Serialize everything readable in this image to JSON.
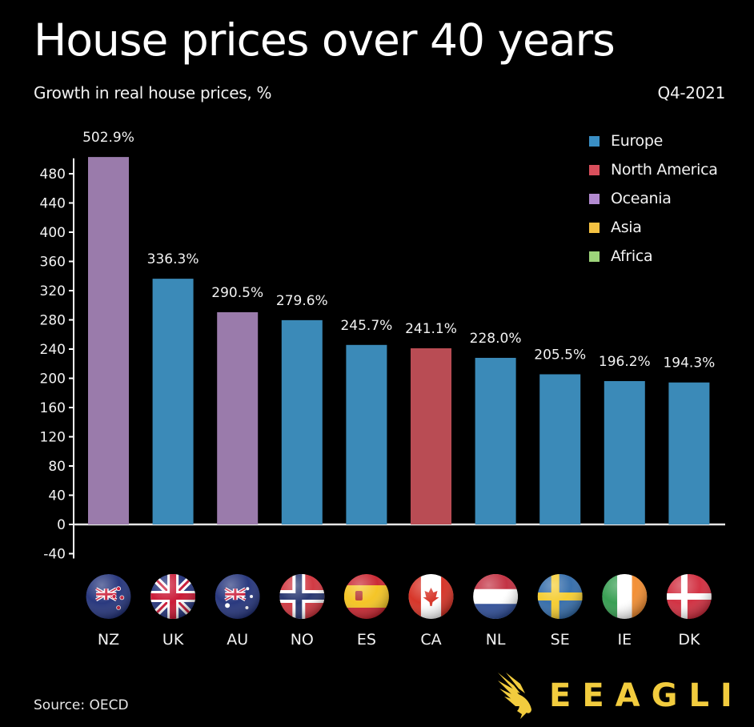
{
  "header": {
    "title": "House prices over 40 years",
    "subtitle": "Growth in real house prices, %",
    "date": "Q4-2021"
  },
  "legend": [
    {
      "label": "Europe",
      "color": "#3a8fc5"
    },
    {
      "label": "North America",
      "color": "#d94f5c"
    },
    {
      "label": "Oceania",
      "color": "#b28ad0"
    },
    {
      "label": "Asia",
      "color": "#f5c242"
    },
    {
      "label": "Africa",
      "color": "#9dd47a"
    }
  ],
  "footer": {
    "source": "Source: OECD",
    "brand": "EEAGLI",
    "brand_color": "#f2cc3e"
  },
  "chart_data": {
    "type": "bar",
    "title": "House prices over 40 years",
    "subtitle": "Growth in real house prices, %",
    "xlabel": "",
    "ylabel": "",
    "ylim": [
      -40,
      500
    ],
    "yticks": [
      -40,
      0,
      40,
      80,
      120,
      160,
      200,
      240,
      280,
      320,
      360,
      400,
      440,
      480
    ],
    "grid": false,
    "legend_position": "top-right",
    "categories": [
      "NZ",
      "UK",
      "AU",
      "NO",
      "ES",
      "CA",
      "NL",
      "SE",
      "IE",
      "DK"
    ],
    "values": [
      502.9,
      336.3,
      290.5,
      279.6,
      245.7,
      241.1,
      228.0,
      205.5,
      196.2,
      194.3
    ],
    "data_labels": [
      "502.9%",
      "336.3%",
      "290.5%",
      "279.6%",
      "245.7%",
      "241.1%",
      "228.0%",
      "205.5%",
      "196.2%",
      "194.3%"
    ],
    "regions": [
      "Oceania",
      "Europe",
      "Oceania",
      "Europe",
      "Europe",
      "North America",
      "Europe",
      "Europe",
      "Europe",
      "Europe"
    ],
    "bar_colors": {
      "Europe": "#3b8ab8",
      "North America": "#b94c54",
      "Oceania": "#9a7bab"
    },
    "flags": [
      "new-zealand",
      "united-kingdom",
      "australia",
      "norway",
      "spain",
      "canada",
      "netherlands",
      "sweden",
      "ireland",
      "denmark"
    ]
  }
}
